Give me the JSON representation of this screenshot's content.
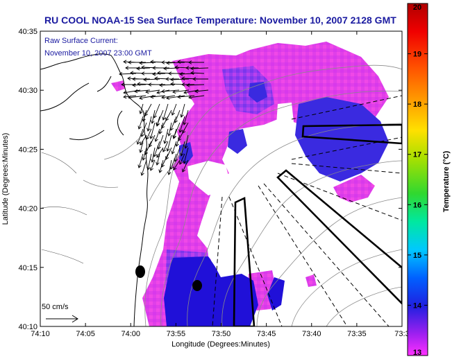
{
  "title": "RU COOL  NOAA-15  Sea Surface Temperature:  November 10, 2007 2128 GMT",
  "annotation": {
    "line1": "Raw Surface Current:",
    "line2": "November 10, 2007 23:00 GMT"
  },
  "scale_label": "50 cm/s",
  "axes": {
    "xlabel": "Longitude (Degrees:Minutes)",
    "ylabel": "Latitude (Degrees:Minutes)",
    "x_ticks": [
      "74:10",
      "74:05",
      "74:00",
      "73:55",
      "73:50",
      "73:45",
      "73:40",
      "73:35",
      "73:3"
    ],
    "y_ticks": [
      "40:35",
      "40:30",
      "40:25",
      "40:20",
      "40:15",
      "40:10"
    ]
  },
  "colorbar": {
    "label": "Temperature (°C)",
    "ticks": [
      "20",
      "19",
      "18",
      "17",
      "16",
      "15",
      "14",
      "13"
    ],
    "min": 13,
    "max": 20
  },
  "colors": {
    "title": "#1a1aa0",
    "warm_sst": "#e040e8",
    "cool_sst": "#3a2ae0",
    "coldest_sst": "#2010d8"
  }
}
